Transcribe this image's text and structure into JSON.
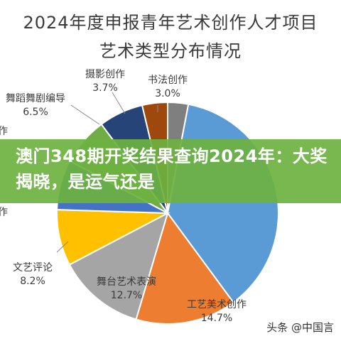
{
  "chart_data": {
    "type": "pie",
    "title": "2024年度申报青年艺术创作人才项目",
    "subtitle": "艺术类型分布情况",
    "slices": [
      {
        "label": "书法创作",
        "value": 3.0,
        "value_text": "3.0%",
        "color": "#7f7f7f"
      },
      {
        "label": "",
        "value": 36.9,
        "value_text": "",
        "color": "#5b9bd5"
      },
      {
        "label": "工艺美术创作",
        "value": 14.7,
        "value_text": "14.7%",
        "color": "#ed7d31"
      },
      {
        "label": "舞台艺术表演",
        "value": 12.7,
        "value_text": "12.7%",
        "color": "#a5a5a5"
      },
      {
        "label": "文艺评论",
        "value": 8.2,
        "value_text": "8.2%",
        "color": "#ffc000"
      },
      {
        "label": "",
        "value": 7.3,
        "value_text": "",
        "color": "#4472c4"
      },
      {
        "label": "",
        "value": 7.0,
        "value_text": "",
        "color": "#70ad47"
      },
      {
        "label": "舞蹈舞剧编导",
        "value": 6.5,
        "value_text": "6.5%",
        "color": "#264478"
      },
      {
        "label": "摄影创作",
        "value": 3.7,
        "value_text": "3.7%",
        "color": "#9e480e"
      }
    ],
    "start_angle_deg": 0,
    "direction": "clockwise"
  },
  "banner": {
    "text": "澳门348期开奖结果查询2024年：大奖揭晓，是运气还是"
  },
  "watermark": {
    "text": "头条 @中国言"
  }
}
